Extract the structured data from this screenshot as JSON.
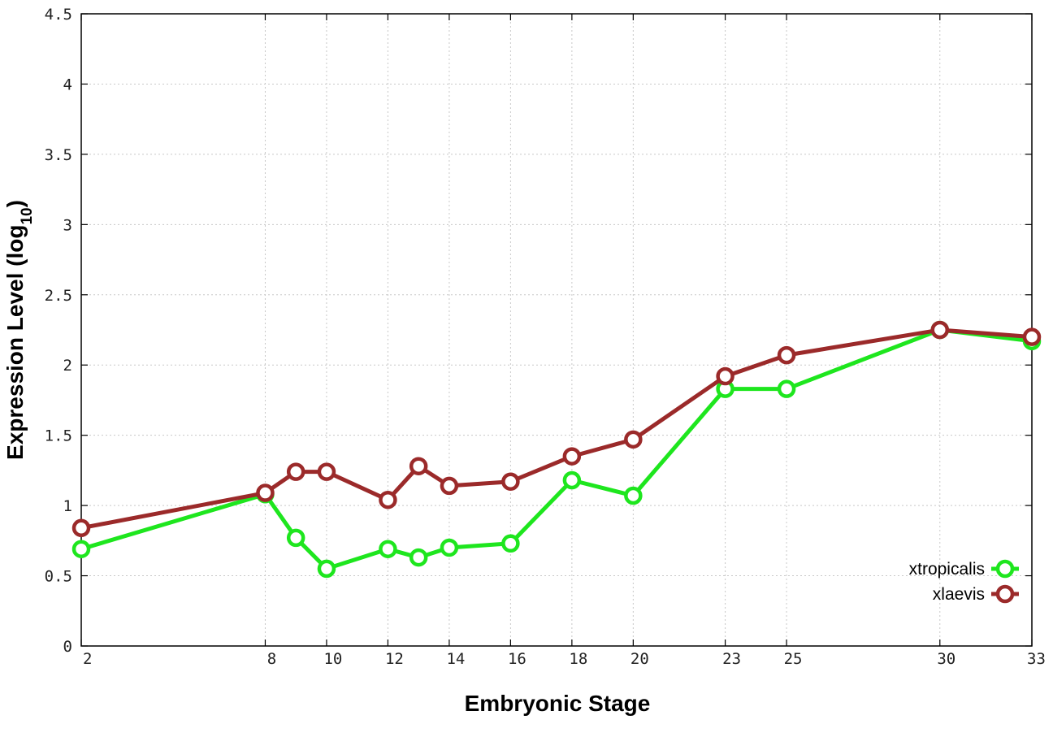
{
  "chart_data": {
    "type": "line",
    "title": "",
    "xlabel": "Embryonic Stage",
    "ylabel_main": "Expression Level (log",
    "ylabel_sub": "10",
    "ylabel_close": ")",
    "x_ticks": [
      2,
      8,
      10,
      12,
      14,
      16,
      18,
      20,
      23,
      25,
      30,
      33
    ],
    "x_tick_labels": [
      "2",
      "8",
      "10",
      "12",
      "14",
      "16",
      "18",
      "20",
      "23",
      "25",
      "30",
      "33"
    ],
    "xlim": [
      2,
      33
    ],
    "y_ticks": [
      0,
      0.5,
      1,
      1.5,
      2,
      2.5,
      3,
      3.5,
      4,
      4.5
    ],
    "y_tick_labels": [
      "0",
      "0.5",
      "1",
      "1.5",
      "2",
      "2.5",
      "3",
      "3.5",
      "4",
      "4.5"
    ],
    "ylim": [
      0,
      4.5
    ],
    "grid": true,
    "legend_position": "bottom-right",
    "series": [
      {
        "name": "xtropicalis",
        "color": "#1ee61e",
        "x": [
          2,
          8,
          9,
          10,
          12,
          13,
          14,
          16,
          18,
          20,
          23,
          25,
          30,
          33
        ],
        "values": [
          0.69,
          1.08,
          0.77,
          0.55,
          0.69,
          0.63,
          0.7,
          0.73,
          1.18,
          1.07,
          1.83,
          1.83,
          2.25,
          2.17
        ]
      },
      {
        "name": "xlaevis",
        "color": "#9b2a2a",
        "x": [
          2,
          8,
          9,
          10,
          12,
          13,
          14,
          16,
          18,
          20,
          23,
          25,
          30,
          33
        ],
        "values": [
          0.84,
          1.09,
          1.24,
          1.24,
          1.04,
          1.28,
          1.14,
          1.17,
          1.35,
          1.47,
          1.92,
          2.07,
          2.25,
          2.2
        ]
      }
    ]
  }
}
